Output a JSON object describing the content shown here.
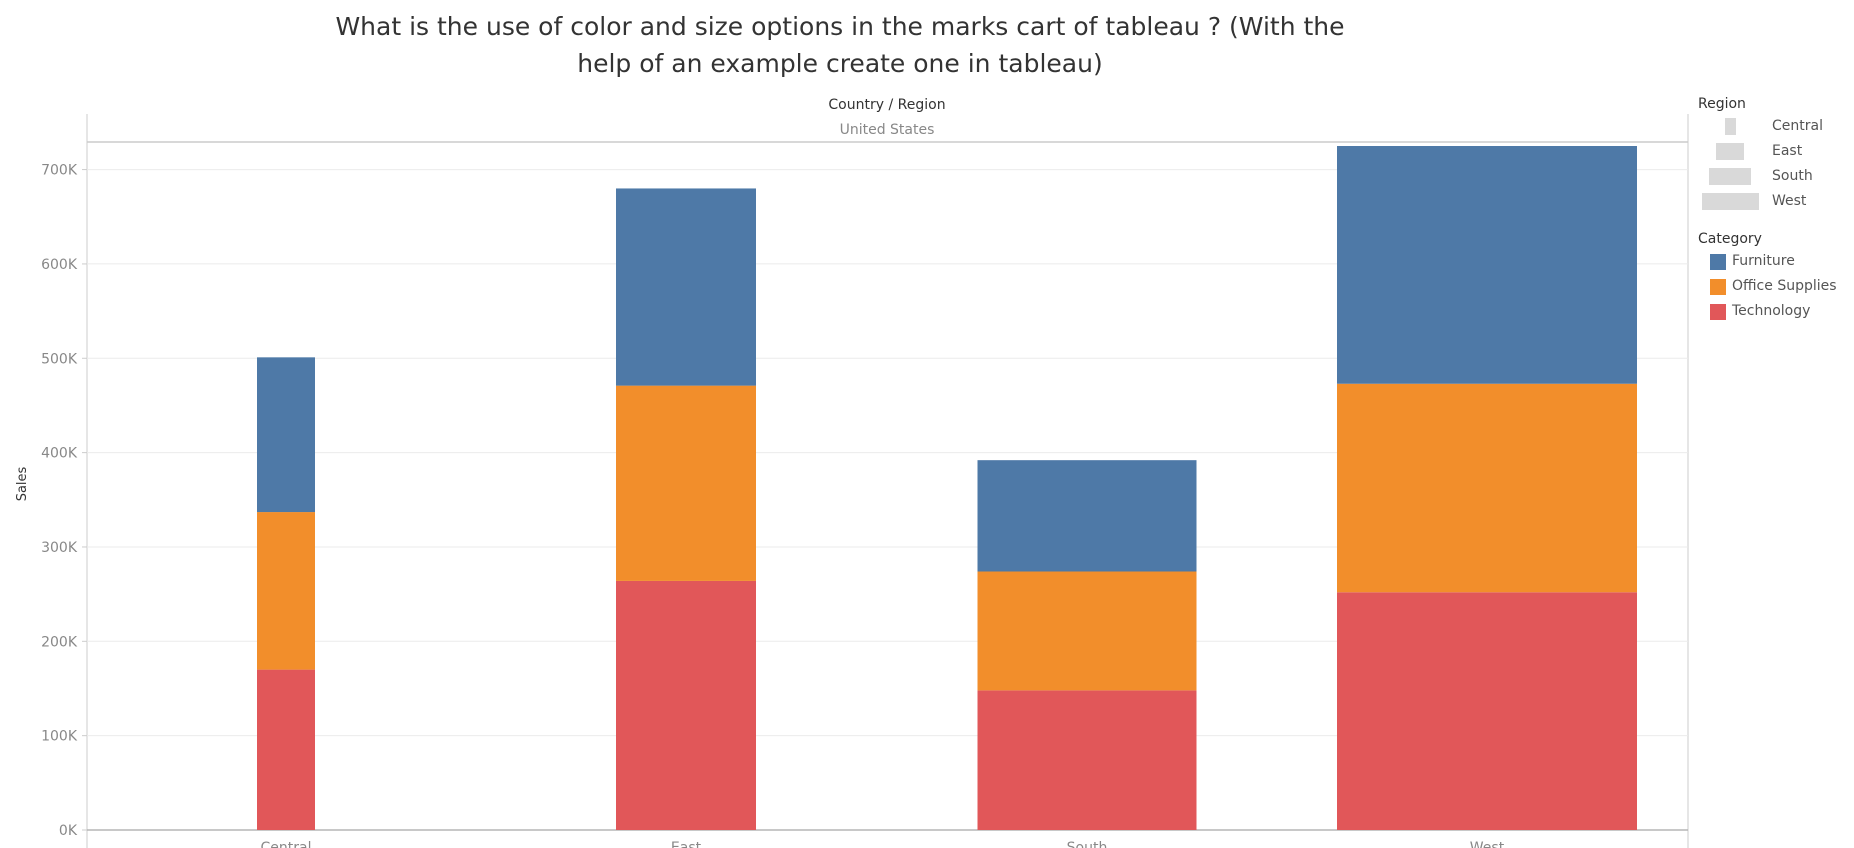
{
  "title": "What is the use of color and size options in the marks cart of tableau ? (With the help of an example create one in tableau)",
  "header": {
    "dimension_label": "Country / Region",
    "country": "United States"
  },
  "legends": {
    "size": {
      "title": "Region",
      "items": [
        "Central",
        "East",
        "South",
        "West"
      ]
    },
    "color": {
      "title": "Category",
      "items": [
        {
          "label": "Furniture",
          "color": "#4e79a7"
        },
        {
          "label": "Office Supplies",
          "color": "#f28e2b"
        },
        {
          "label": "Technology",
          "color": "#e15759"
        }
      ]
    }
  },
  "chart_data": {
    "type": "bar",
    "stacked": true,
    "categories": [
      "Central",
      "East",
      "South",
      "West"
    ],
    "series": [
      {
        "name": "Technology",
        "color": "#e15759",
        "values": [
          170000,
          264000,
          148000,
          252000
        ]
      },
      {
        "name": "Office Supplies",
        "color": "#f28e2b",
        "values": [
          167000,
          207000,
          126000,
          221000
        ]
      },
      {
        "name": "Furniture",
        "color": "#4e79a7",
        "values": [
          164000,
          209000,
          118000,
          252000
        ]
      }
    ],
    "xlabel": "",
    "ylabel": "Sales",
    "ylim": [
      0,
      760000
    ],
    "yticks": [
      0,
      100000,
      200000,
      300000,
      400000,
      500000,
      600000,
      700000
    ],
    "ytick_labels": [
      "0K",
      "100K",
      "200K",
      "300K",
      "400K",
      "500K",
      "600K",
      "700K"
    ],
    "bar_size_encoding": "Region",
    "grid": true
  }
}
